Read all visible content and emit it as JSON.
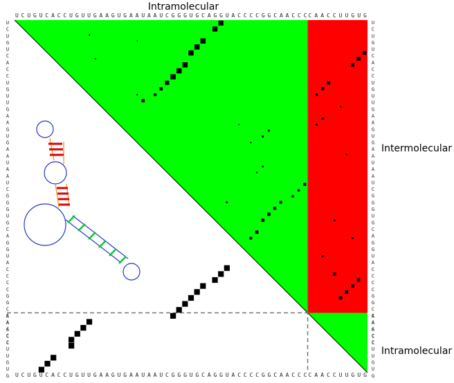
{
  "chart_data": {
    "type": "dotplot",
    "strand_1": "UCUGUCACCUGUUGAAGUGAAUAAUCGGGUGCAGGUACCCCGGCAACCC",
    "strand_2": "CAACCUUGUG",
    "region_labels": {
      "top": "Intramolecular",
      "right": "Intermolecular",
      "bottom": "Intramolecular"
    },
    "colors": {
      "intramolecular": "#00ff00",
      "intermolecular": "#ff0000"
    },
    "dots": [
      {
        "i": 0,
        "j": 34,
        "p": 0.7
      },
      {
        "i": 1,
        "j": 33,
        "p": 0.7
      },
      {
        "i": 3,
        "j": 31,
        "p": 0.75
      },
      {
        "i": 4,
        "j": 30,
        "p": 0.75
      },
      {
        "i": 5,
        "j": 29,
        "p": 0.75
      },
      {
        "i": 7,
        "j": 28,
        "p": 0.75
      },
      {
        "i": 8,
        "j": 27,
        "p": 0.75
      },
      {
        "i": 9,
        "j": 26,
        "p": 0.75
      },
      {
        "i": 10,
        "j": 25,
        "p": 0.5
      },
      {
        "i": 11,
        "j": 24,
        "p": 0.3
      },
      {
        "i": 12,
        "j": 23,
        "p": 0.2
      },
      {
        "i": 13,
        "j": 21,
        "p": 0.3
      },
      {
        "i": 2,
        "j": 12,
        "p": 0.05
      },
      {
        "i": 6,
        "j": 13,
        "p": 0.05
      },
      {
        "i": 3,
        "j": 20,
        "p": 0.03
      },
      {
        "i": 12,
        "j": 20,
        "p": 0.05
      },
      {
        "i": 18,
        "j": 42,
        "p": 0.1
      },
      {
        "i": 19,
        "j": 41,
        "p": 0.1
      },
      {
        "i": 20,
        "j": 39,
        "p": 0.05
      },
      {
        "i": 17,
        "j": 37,
        "p": 0.03
      },
      {
        "i": 24,
        "j": 41,
        "p": 0.08
      },
      {
        "i": 25,
        "j": 40,
        "p": 0.05
      },
      {
        "i": 27,
        "j": 48,
        "p": 0.25
      },
      {
        "i": 28,
        "j": 47,
        "p": 0.15
      },
      {
        "i": 29,
        "j": 46,
        "p": 0.15
      },
      {
        "i": 30,
        "j": 44,
        "p": 0.2
      },
      {
        "i": 31,
        "j": 43,
        "p": 0.25
      },
      {
        "i": 32,
        "j": 42,
        "p": 0.3
      },
      {
        "i": 33,
        "j": 41,
        "p": 0.3
      },
      {
        "i": 35,
        "j": 40,
        "p": 0.3
      },
      {
        "i": 36,
        "j": 39,
        "p": 0.2
      },
      {
        "i": 30,
        "j": 35,
        "p": 0.1
      },
      {
        "i": 5,
        "j": 58,
        "p": 0.4
      },
      {
        "i": 6,
        "j": 57,
        "p": 0.4
      },
      {
        "i": 7,
        "j": 56,
        "p": 0.35
      },
      {
        "i": 10,
        "j": 52,
        "p": 0.3
      },
      {
        "i": 11,
        "j": 51,
        "p": 0.25
      },
      {
        "i": 12,
        "j": 50,
        "p": 0.15
      },
      {
        "i": 16,
        "j": 51,
        "p": 0.15
      },
      {
        "i": 17,
        "j": 50,
        "p": 0.1
      },
      {
        "i": 14,
        "j": 54,
        "p": 0.05
      },
      {
        "i": 22,
        "j": 55,
        "p": 0.05
      },
      {
        "i": 33,
        "j": 53,
        "p": 0.1
      },
      {
        "i": 36,
        "j": 56,
        "p": 0.1
      },
      {
        "i": 42,
        "j": 53,
        "p": 0.25
      },
      {
        "i": 43,
        "j": 57,
        "p": 0.3
      },
      {
        "i": 44,
        "j": 56,
        "p": 0.3
      },
      {
        "i": 45,
        "j": 55,
        "p": 0.3
      },
      {
        "i": 46,
        "j": 54,
        "p": 0.3
      },
      {
        "i": 39,
        "j": 51,
        "p": 0.1
      }
    ],
    "mfe_pairs": [
      {
        "i": 26,
        "j": 49
      },
      {
        "i": 27,
        "j": 48
      },
      {
        "i": 28,
        "j": 47
      },
      {
        "i": 29,
        "j": 46
      },
      {
        "i": 30,
        "j": 45
      },
      {
        "i": 31,
        "j": 44
      },
      {
        "i": 33,
        "j": 43
      },
      {
        "i": 34,
        "j": 42
      },
      {
        "i": 35,
        "j": 41
      },
      {
        "i": 12,
        "j": 50
      },
      {
        "i": 11,
        "j": 51
      },
      {
        "i": 10,
        "j": 52
      },
      {
        "i": 9,
        "j": 53
      },
      {
        "i": 9,
        "j": 54
      },
      {
        "i": 6,
        "j": 56
      },
      {
        "i": 5,
        "j": 57
      },
      {
        "i": 4,
        "j": 58
      }
    ]
  }
}
